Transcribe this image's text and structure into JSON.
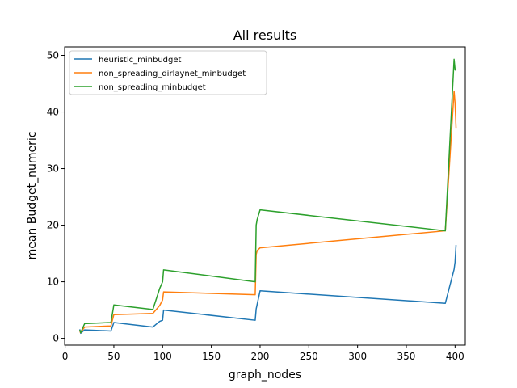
{
  "chart_data": {
    "type": "line",
    "title": "All results",
    "xlabel": "graph_nodes",
    "ylabel": "mean Budget_numeric",
    "xlim": [
      -0.5,
      410.5
    ],
    "ylim": [
      -1.2,
      51.5
    ],
    "xticks": [
      0,
      50,
      100,
      150,
      200,
      250,
      300,
      350,
      400
    ],
    "yticks": [
      0,
      10,
      20,
      30,
      40,
      50
    ],
    "grid": false,
    "legend_position": "upper-left",
    "series": [
      {
        "name": "heuristic_minbudget",
        "color": "#1f77b4",
        "x": [
          15,
          16,
          20,
          47,
          50,
          90,
          97,
          100,
          101,
          195,
          196,
          197,
          200,
          390,
          399,
          400,
          401
        ],
        "y": [
          1.6,
          0.9,
          1.5,
          1.3,
          2.8,
          2.0,
          3.0,
          3.2,
          5.0,
          3.2,
          5.2,
          6.0,
          8.4,
          6.2,
          12.2,
          13.5,
          16.5
        ]
      },
      {
        "name": "non_spreading_dirlaynet_minbudget",
        "color": "#ff7f0e",
        "x": [
          15,
          16,
          20,
          47,
          50,
          90,
          97,
          100,
          101,
          195,
          196,
          197,
          200,
          390,
          399,
          400,
          401
        ],
        "y": [
          1.2,
          1.0,
          2.0,
          2.2,
          4.2,
          4.4,
          5.8,
          6.8,
          8.2,
          7.7,
          14.8,
          15.5,
          16.0,
          19.0,
          43.7,
          41.5,
          37.2
        ]
      },
      {
        "name": "non_spreading_minbudget",
        "color": "#2ca02c",
        "x": [
          15,
          16,
          20,
          47,
          50,
          90,
          97,
          100,
          101,
          195,
          196,
          197,
          200,
          390,
          399,
          400,
          401
        ],
        "y": [
          1.5,
          1.0,
          2.6,
          2.8,
          5.9,
          5.1,
          8.8,
          10.0,
          12.1,
          10.0,
          20.0,
          21.0,
          22.7,
          19.0,
          49.3,
          47.5,
          47.3
        ]
      }
    ]
  }
}
